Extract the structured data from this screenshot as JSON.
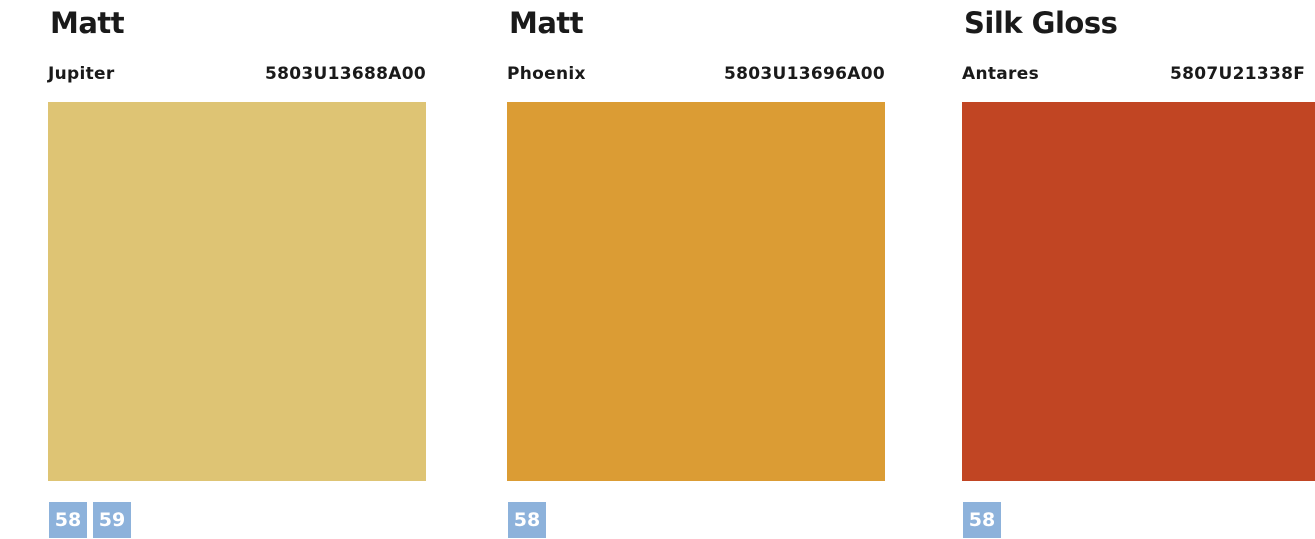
{
  "cards": [
    {
      "finish": "Matt",
      "name": "Jupiter",
      "code": "5803U13688A00",
      "color": "#dec474",
      "pages": [
        "58",
        "59"
      ]
    },
    {
      "finish": "Matt",
      "name": "Phoenix",
      "code": "5803U13696A00",
      "color": "#db9c34",
      "pages": [
        "58"
      ]
    },
    {
      "finish": "Silk Gloss",
      "name": "Antares",
      "code": "5807U21338F",
      "color": "#c14523",
      "pages": [
        "58"
      ]
    }
  ],
  "colors": {
    "page_badge_bg": "#8db2db",
    "page_badge_text": "#ffffff",
    "text": "#1a1a1a"
  }
}
